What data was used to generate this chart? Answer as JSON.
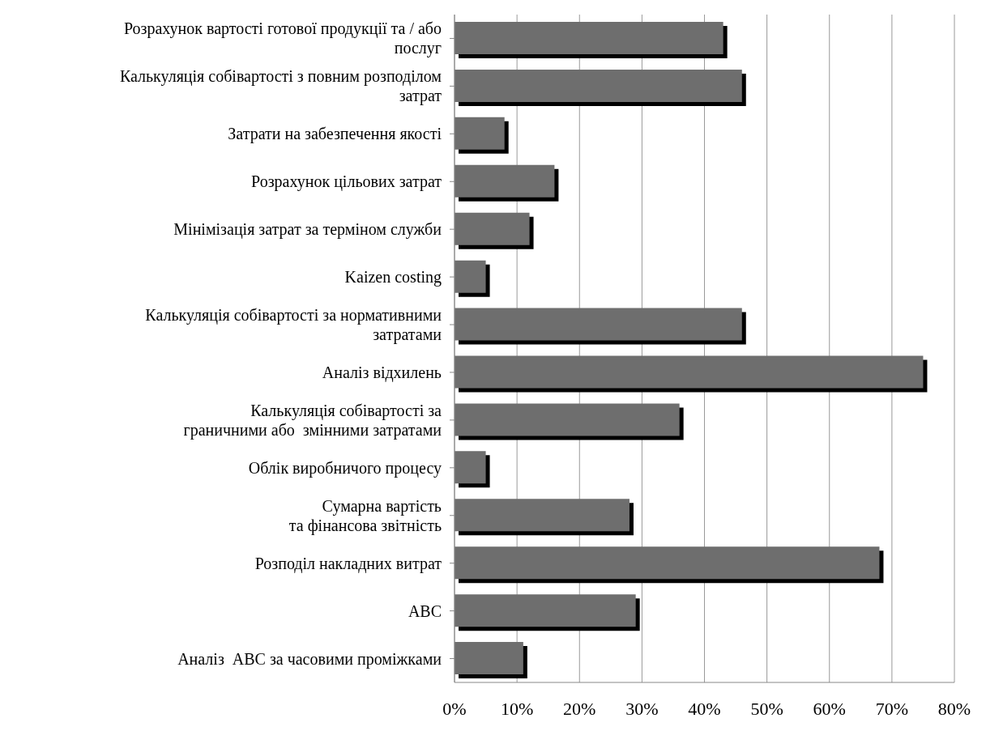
{
  "chart_data": {
    "type": "bar",
    "orientation": "horizontal",
    "categories": [
      "Розрахунок вартості готової продукції та / або\nпослуг",
      "Калькуляція собівартості з повним розподілом\nзатрат",
      "Затрати на забезпечення якості",
      "Розрахунок цільових затрат",
      "Мінімізація затрат за терміном служби",
      "Kaizen costing",
      "Калькуляція собівартості за нормативними\nзатратами",
      "Аналіз відхилень",
      "Калькуляція собівартості за\nграничними або  змінними затратами",
      "Облік виробничого процесу",
      "Сумарна вартість\nта фінансова звітність",
      "Розподіл накладних витрат",
      "ABC",
      "Аналіз  ABC за часовими проміжками"
    ],
    "values": [
      0.43,
      0.46,
      0.08,
      0.16,
      0.12,
      0.05,
      0.46,
      0.75,
      0.36,
      0.05,
      0.28,
      0.68,
      0.29,
      0.11
    ],
    "color": "#6e6e6e",
    "xlim": [
      0,
      0.8
    ],
    "xticks": [
      {
        "value": 0,
        "label": "0%"
      },
      {
        "value": 0.1,
        "label": "10%"
      },
      {
        "value": 0.2,
        "label": "20%"
      },
      {
        "value": 0.3,
        "label": "30%"
      },
      {
        "value": 0.4,
        "label": "40%"
      },
      {
        "value": 0.5,
        "label": "50%"
      },
      {
        "value": 0.6,
        "label": "60%"
      },
      {
        "value": 0.7,
        "label": "70%"
      },
      {
        "value": 0.8,
        "label": "80%"
      }
    ],
    "grid": "x"
  }
}
